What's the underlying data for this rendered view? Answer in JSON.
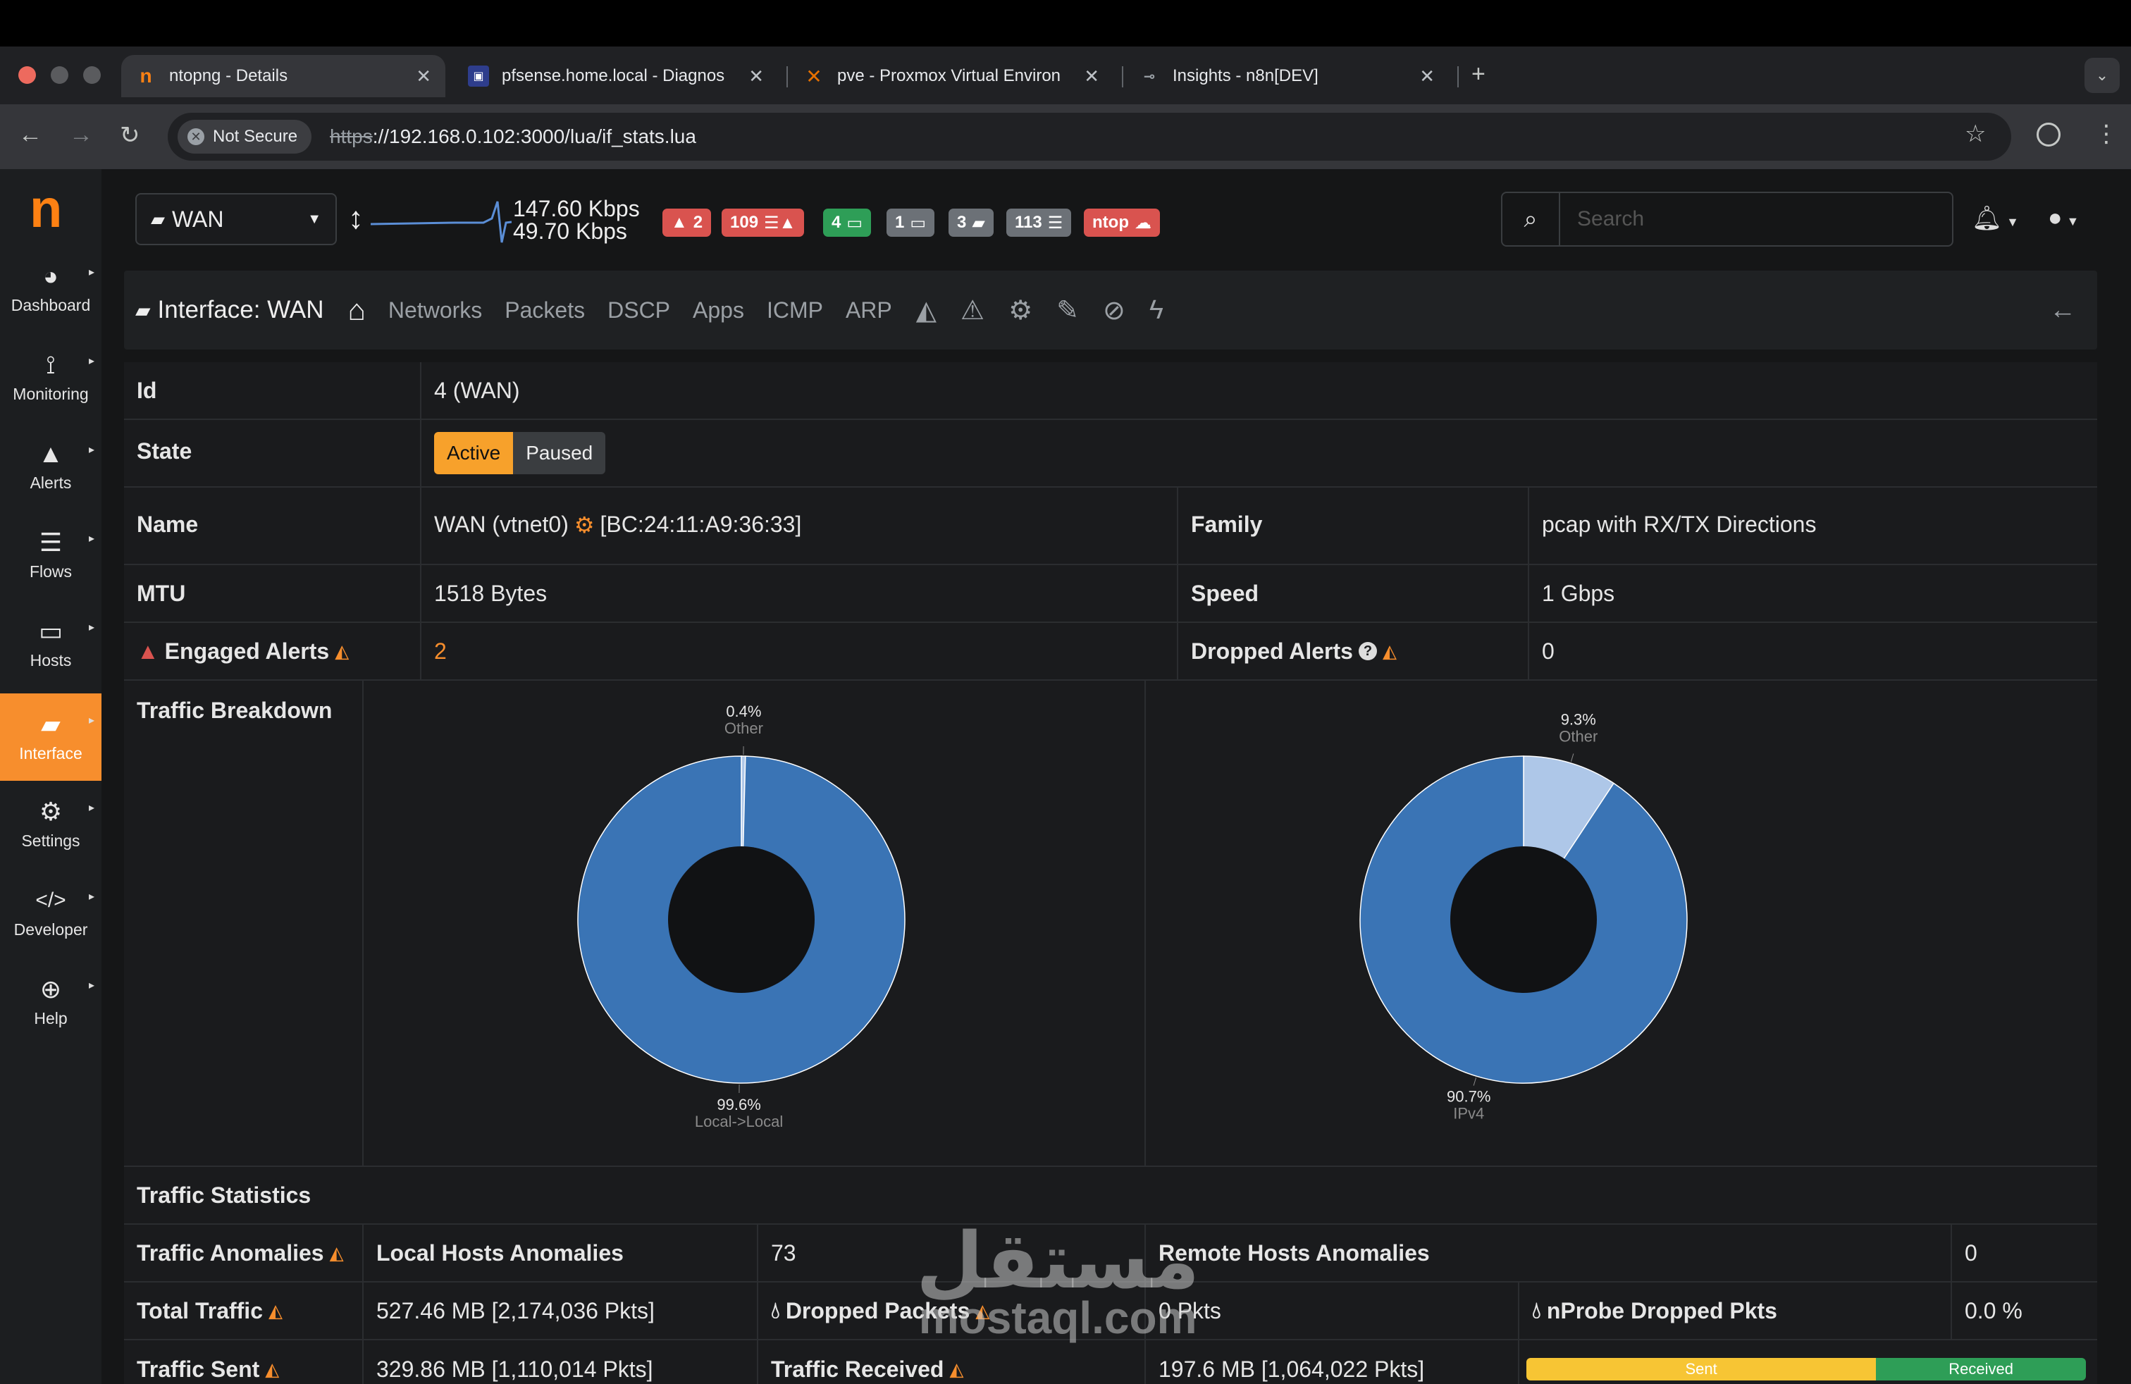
{
  "browser": {
    "tabs": [
      {
        "title": "ntopng - Details",
        "icon": "ntop-icon"
      },
      {
        "title": "pfsense.home.local - Diagnos",
        "icon": "pfsense-icon"
      },
      {
        "title": "pve - Proxmox Virtual Environ",
        "icon": "proxmox-icon"
      },
      {
        "title": "Insights - n8n[DEV]",
        "icon": "n8n-icon"
      }
    ],
    "not_secure": "Not Secure",
    "url_scheme": "https",
    "url_rest": "://192.168.0.102:3000/lua/if_stats.lua"
  },
  "sidebar": {
    "logo": "n",
    "items": [
      {
        "label": "Dashboard",
        "icon": "dashboard-icon",
        "glyph": "◕"
      },
      {
        "label": "Monitoring",
        "icon": "monitoring-icon",
        "glyph": "⟟"
      },
      {
        "label": "Alerts",
        "icon": "alert-icon",
        "glyph": "▲"
      },
      {
        "label": "Flows",
        "icon": "flows-icon",
        "glyph": "☰"
      },
      {
        "label": "Hosts",
        "icon": "laptop-icon",
        "glyph": "▭"
      },
      {
        "label": "Interface",
        "icon": "ethernet-icon",
        "glyph": "▰"
      },
      {
        "label": "Settings",
        "icon": "gear-icon",
        "glyph": "⚙"
      },
      {
        "label": "Developer",
        "icon": "code-icon",
        "glyph": "</>"
      },
      {
        "label": "Help",
        "icon": "lifebuoy-icon",
        "glyph": "⊕"
      }
    ]
  },
  "header": {
    "interface": "WAN",
    "rate_up": "147.60 Kbps",
    "rate_down": "49.70 Kbps",
    "badges": [
      {
        "text": "2",
        "color": "#d9534f",
        "icon": "warning-icon"
      },
      {
        "text": "109",
        "color": "#d9534f",
        "icon": "flows-warning-icon"
      },
      {
        "text": "4",
        "color": "#2e9e57",
        "icon": "laptop-icon"
      },
      {
        "text": "1",
        "color": "#6c7177",
        "icon": "laptop-icon"
      },
      {
        "text": "3",
        "color": "#6c7177",
        "icon": "ethernet-icon"
      },
      {
        "text": "113",
        "color": "#6c7177",
        "icon": "flows-icon"
      },
      {
        "text": "ntop",
        "color": "#d9534f",
        "icon": "cloud-icon"
      }
    ],
    "search_placeholder": "Search"
  },
  "ifnav": {
    "title": "Interface: WAN",
    "links": [
      "Networks",
      "Packets",
      "DSCP",
      "Apps",
      "ICMP",
      "ARP"
    ]
  },
  "details": {
    "id_label": "Id",
    "id_value": "4 (WAN)",
    "state_label": "State",
    "state_active": "Active",
    "state_paused": "Paused",
    "name_label": "Name",
    "name_value_1": "WAN (vtnet0)",
    "name_value_2": "[BC:24:11:A9:36:33]",
    "family_label": "Family",
    "family_value": "pcap with RX/TX Directions",
    "mtu_label": "MTU",
    "mtu_value": "1518 Bytes",
    "speed_label": "Speed",
    "speed_value": "1 Gbps",
    "engaged_label": "Engaged Alerts",
    "engaged_value": "2",
    "dropped_label": "Dropped Alerts",
    "dropped_value": "0",
    "breakdown_label": "Traffic Breakdown",
    "stats_label": "Traffic Statistics",
    "anomalies_label": "Traffic Anomalies",
    "local_anom_label": "Local Hosts Anomalies",
    "local_anom_value": "73",
    "remote_anom_label": "Remote Hosts Anomalies",
    "remote_anom_value": "0",
    "total_label": "Total Traffic",
    "total_value": "527.46 MB [2,174,036 Pkts]",
    "dropped_pkts_label": "Dropped Packets",
    "dropped_pkts_value": "0 Pkts",
    "nprobe_label": "nProbe Dropped Pkts",
    "nprobe_value": "0.0 %",
    "sent_label": "Traffic Sent",
    "sent_value": "329.86 MB [1,110,014 Pkts]",
    "recv_label": "Traffic Received",
    "recv_value": "197.6 MB [1,064,022 Pkts]",
    "bar_sent": "Sent",
    "bar_recv": "Received",
    "bar_sent_fraction": 0.625
  },
  "chart_data": [
    {
      "type": "pie",
      "slices": [
        {
          "label": "Other",
          "value": 0.4,
          "display": "0.4%",
          "color": "#aec7e8"
        },
        {
          "label": "Local->Local",
          "value": 99.6,
          "display": "99.6%",
          "color": "#3a74b5"
        }
      ]
    },
    {
      "type": "pie",
      "slices": [
        {
          "label": "Other",
          "value": 9.3,
          "display": "9.3%",
          "color": "#aec7e8"
        },
        {
          "label": "IPv4",
          "value": 90.7,
          "display": "90.7%",
          "color": "#3a74b5"
        }
      ]
    }
  ],
  "watermark": {
    "ar": "مستقل",
    "en": "mostaql.com"
  }
}
